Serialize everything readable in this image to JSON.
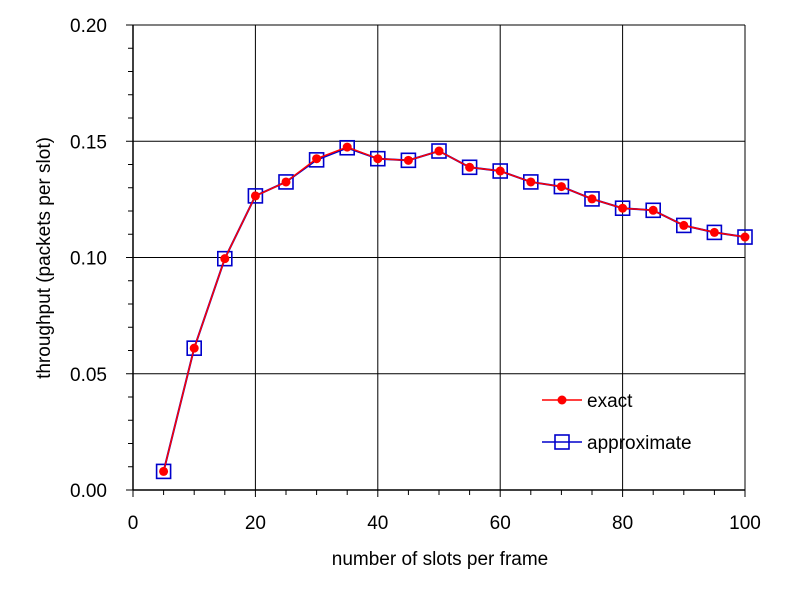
{
  "chart_data": {
    "type": "line",
    "title": "",
    "xlabel": "number of slots per frame",
    "ylabel": "throughput (packets per slot)",
    "xlim": [
      0,
      100
    ],
    "ylim": [
      0,
      0.2
    ],
    "x_ticks": [
      "0",
      "20",
      "40",
      "60",
      "80",
      "100"
    ],
    "y_ticks": [
      "0.00",
      "0.05",
      "0.10",
      "0.15",
      "0.20"
    ],
    "grid": true,
    "legend_position": "bottom-right",
    "x": [
      5,
      10,
      15,
      20,
      25,
      30,
      35,
      40,
      45,
      50,
      55,
      60,
      65,
      70,
      75,
      80,
      85,
      90,
      95,
      100
    ],
    "series": [
      {
        "name": "exact",
        "color": "#ff0000",
        "marker": "filled-circle",
        "values": [
          0.008,
          0.061,
          0.0995,
          0.1265,
          0.1325,
          0.1425,
          0.1475,
          0.1425,
          0.1418,
          0.1458,
          0.1388,
          0.1372,
          0.1325,
          0.1305,
          0.1252,
          0.1212,
          0.1203,
          0.1138,
          0.1108,
          0.1088
        ]
      },
      {
        "name": "approximate",
        "color": "#0000cc",
        "marker": "open-square",
        "values": [
          0.008,
          0.061,
          0.0995,
          0.1265,
          0.1325,
          0.142,
          0.1472,
          0.1425,
          0.1418,
          0.1458,
          0.1388,
          0.1372,
          0.1325,
          0.1305,
          0.1252,
          0.1212,
          0.1203,
          0.1138,
          0.1108,
          0.1088
        ]
      }
    ]
  }
}
